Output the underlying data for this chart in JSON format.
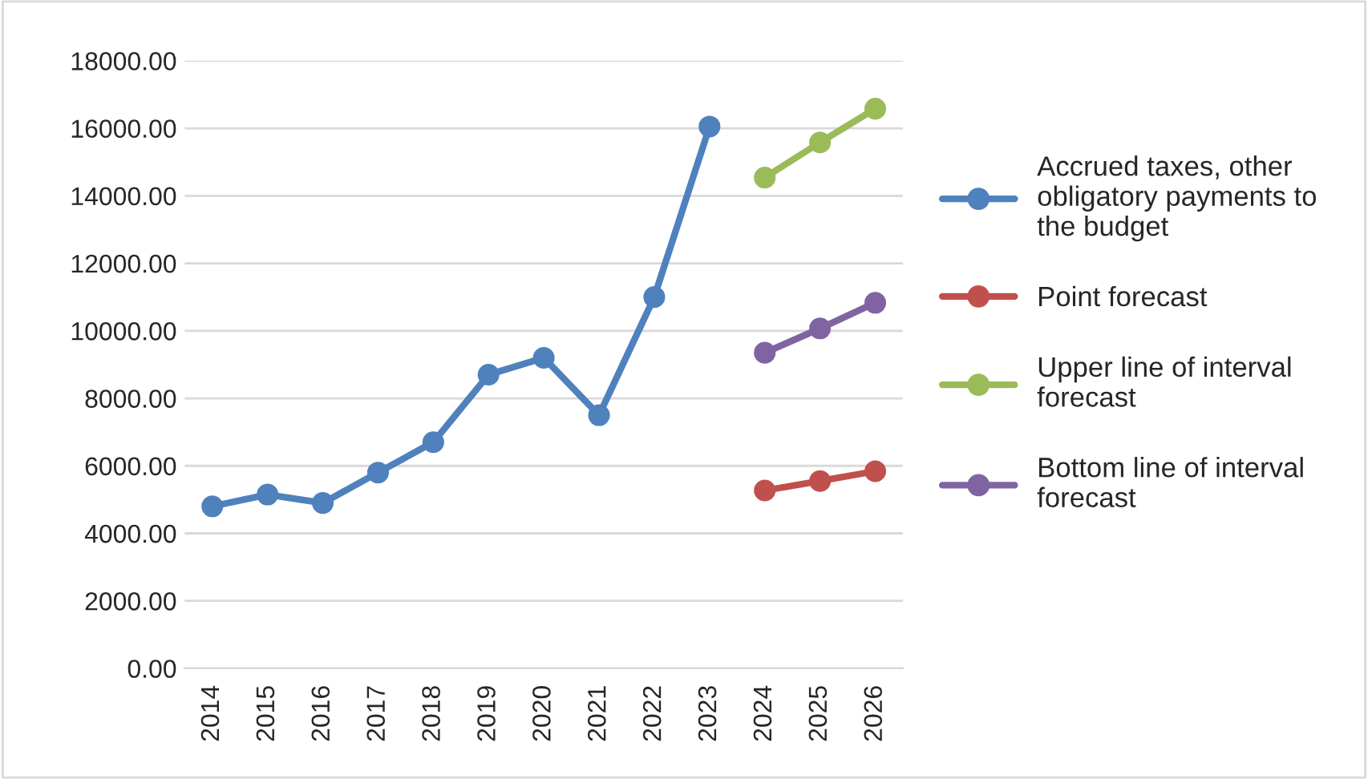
{
  "chart_data": {
    "type": "line",
    "categories": [
      "2014",
      "2015",
      "2016",
      "2017",
      "2018",
      "2019",
      "2020",
      "2021",
      "2022",
      "2023",
      "2024",
      "2025",
      "2026"
    ],
    "series": [
      {
        "name": "Accrued taxes, other obligatory payments to the budget",
        "color": "#4f81bd",
        "values": [
          4800,
          5150,
          4900,
          5800,
          6700,
          8700,
          9200,
          7500,
          11000,
          16050,
          null,
          null,
          null
        ]
      },
      {
        "name": "Point forecast",
        "color": "#c0504d",
        "values": [
          null,
          null,
          null,
          null,
          null,
          null,
          null,
          null,
          null,
          null,
          5270,
          5550,
          5840
        ]
      },
      {
        "name": "Upper line of interval forecast",
        "color": "#9bbb59",
        "values": [
          null,
          null,
          null,
          null,
          null,
          null,
          null,
          null,
          null,
          null,
          14540,
          15580,
          16580
        ]
      },
      {
        "name": "Bottom line of interval forecast",
        "color": "#8064a2",
        "values": [
          null,
          null,
          null,
          null,
          null,
          null,
          null,
          null,
          null,
          null,
          9350,
          10070,
          10830
        ]
      }
    ],
    "ylim": [
      0,
      18000
    ],
    "yticks": [
      {
        "value": 0,
        "label": "0.00"
      },
      {
        "value": 2000,
        "label": "2000.00"
      },
      {
        "value": 4000,
        "label": "4000.00"
      },
      {
        "value": 6000,
        "label": "6000.00"
      },
      {
        "value": 8000,
        "label": "8000.00"
      },
      {
        "value": 10000,
        "label": "10000.00"
      },
      {
        "value": 12000,
        "label": "12000.00"
      },
      {
        "value": 14000,
        "label": "14000.00"
      },
      {
        "value": 16000,
        "label": "16000.00"
      },
      {
        "value": 18000,
        "label": "18000.00"
      }
    ],
    "grid": "y",
    "legend": "right",
    "marker": "circle",
    "line_style": "solid"
  }
}
